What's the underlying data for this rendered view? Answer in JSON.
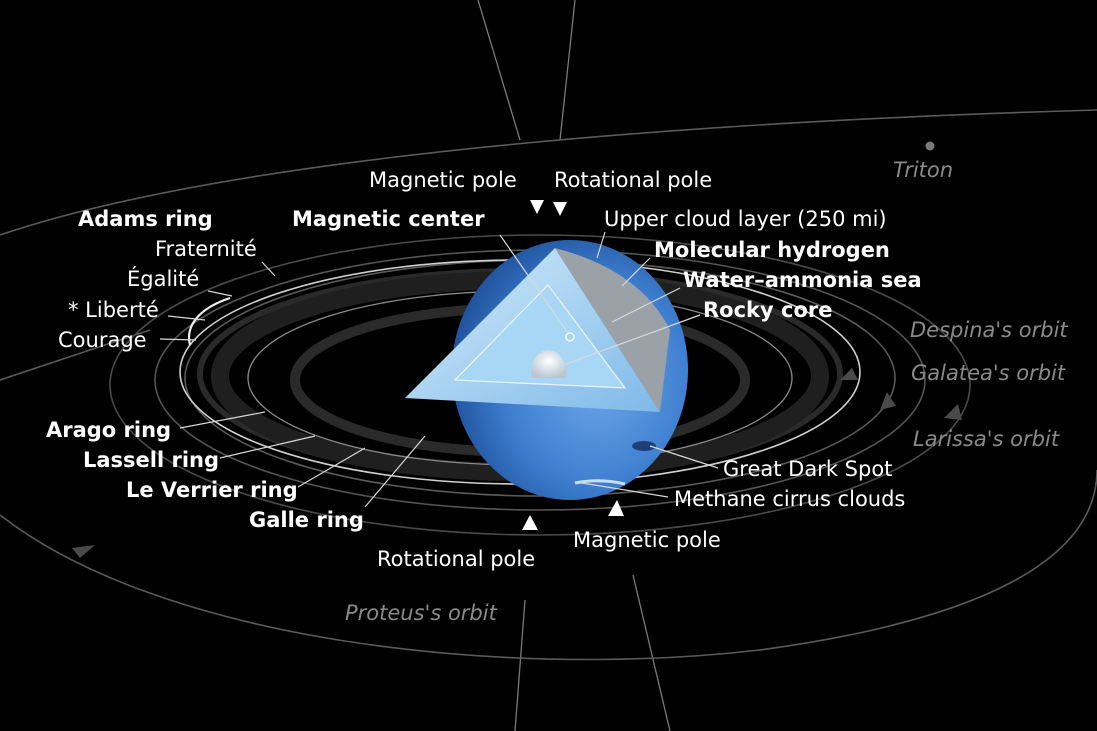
{
  "diagram": {
    "pole_labels": {
      "magnetic_top": "Magnetic pole",
      "rotational_top": "Rotational pole",
      "rotational_bottom": "Rotational pole",
      "magnetic_bottom": "Magnetic pole"
    },
    "interior_labels": {
      "magnetic_center": "Magnetic center",
      "upper_cloud": "Upper cloud layer (250 mi)",
      "molecular_hydrogen": "Molecular hydrogen",
      "water_ammonia": "Water–ammonia sea",
      "rocky_core": "Rocky core"
    },
    "surface_labels": {
      "great_dark_spot": "Great Dark Spot",
      "methane_cirrus": "Methane cirrus clouds"
    },
    "ring_labels": {
      "adams": "Adams ring",
      "fraternite": "Fraternité",
      "egalite": "Égalité",
      "liberte": "* Liberté",
      "courage": "Courage",
      "arago": "Arago ring",
      "lassell": "Lassell ring",
      "le_verrier": "Le Verrier ring",
      "galle": "Galle ring"
    },
    "orbit_labels": {
      "triton": "Triton",
      "despina": "Despina's orbit",
      "galatea": "Galatea's orbit",
      "larissa": "Larissa's orbit",
      "proteus": "Proteus's orbit"
    },
    "colors": {
      "background": "#000000",
      "planet_blue": "#3f7fd0",
      "label_text": "#ffffff",
      "orbit_text": "#8a8a8a"
    }
  }
}
